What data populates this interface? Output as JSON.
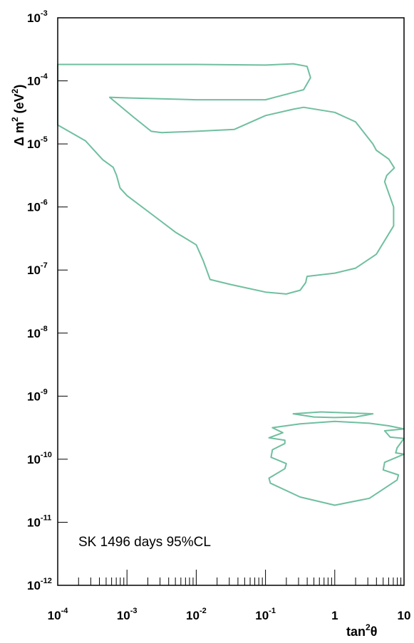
{
  "chart_data": {
    "type": "contour",
    "xlabel": {
      "base": "tan",
      "sup": "2",
      "tail": "θ"
    },
    "ylabel": {
      "pre": "Δ m",
      "sup1": "2",
      "mid": " (eV",
      "sup2": "2",
      "post": ")"
    },
    "x_log_range": [
      -4,
      1
    ],
    "y_log_range": [
      -12,
      -3
    ],
    "x_scale": "log",
    "y_scale": "log",
    "grid": false,
    "x_ticks": [
      {
        "base": "10",
        "exp": "-4"
      },
      {
        "base": "10",
        "exp": "-3"
      },
      {
        "base": "10",
        "exp": "-2"
      },
      {
        "base": "10",
        "exp": "-1"
      },
      {
        "base": "1",
        "exp": ""
      },
      {
        "base": "10",
        "exp": ""
      }
    ],
    "y_ticks": [
      {
        "base": "10",
        "exp": "-12"
      },
      {
        "base": "10",
        "exp": "-11"
      },
      {
        "base": "10",
        "exp": "-10"
      },
      {
        "base": "10",
        "exp": "-9"
      },
      {
        "base": "10",
        "exp": "-8"
      },
      {
        "base": "10",
        "exp": "-7"
      },
      {
        "base": "10",
        "exp": "-6"
      },
      {
        "base": "10",
        "exp": "-5"
      },
      {
        "base": "10",
        "exp": "-4"
      },
      {
        "base": "10",
        "exp": "-3"
      }
    ],
    "annotation": "SK 1496 days 95%CL",
    "color": "#6fbf9f",
    "contours": [
      {
        "name": "upper-allowed-region",
        "points": [
          [
            -4,
            -3.74
          ],
          [
            -3,
            -3.74
          ],
          [
            -2,
            -3.74
          ],
          [
            -1,
            -3.75
          ],
          [
            -0.6,
            -3.73
          ],
          [
            -0.4,
            -3.77
          ],
          [
            -0.35,
            -3.95
          ],
          [
            -0.45,
            -4.14
          ],
          [
            -1,
            -4.3
          ],
          [
            -2,
            -4.3
          ],
          [
            -3,
            -4.27
          ],
          [
            -3.25,
            -4.26
          ],
          [
            -2.9,
            -4.58
          ],
          [
            -2.65,
            -4.8
          ],
          [
            -2.5,
            -4.82
          ],
          [
            -2,
            -4.8
          ],
          [
            -1.45,
            -4.77
          ],
          [
            -1,
            -4.55
          ],
          [
            -0.6,
            -4.45
          ],
          [
            -0.45,
            -4.42
          ],
          [
            0,
            -4.5
          ],
          [
            0.3,
            -4.65
          ],
          [
            0.55,
            -5.0
          ],
          [
            0.6,
            -5.1
          ],
          [
            0.78,
            -5.24
          ],
          [
            0.86,
            -5.38
          ],
          [
            0.75,
            -5.5
          ],
          [
            0.72,
            -5.6
          ],
          [
            0.85,
            -6.0
          ],
          [
            0.85,
            -6.3
          ],
          [
            0.6,
            -6.75
          ],
          [
            0.3,
            -6.97
          ],
          [
            0,
            -7.05
          ],
          [
            -0.4,
            -7.1
          ],
          [
            -0.42,
            -7.2
          ],
          [
            -0.5,
            -7.32
          ],
          [
            -0.7,
            -7.38
          ],
          [
            -1,
            -7.35
          ],
          [
            -1.5,
            -7.23
          ],
          [
            -1.8,
            -7.15
          ],
          [
            -1.85,
            -7.0
          ],
          [
            -1.9,
            -6.85
          ],
          [
            -2,
            -6.6
          ],
          [
            -2.3,
            -6.4
          ],
          [
            -2.6,
            -6.15
          ],
          [
            -3,
            -5.82
          ],
          [
            -3.1,
            -5.7
          ],
          [
            -3.15,
            -5.5
          ],
          [
            -3.2,
            -5.37
          ],
          [
            -3.35,
            -5.25
          ],
          [
            -3.6,
            -4.95
          ],
          [
            -4,
            -4.7
          ]
        ]
      },
      {
        "name": "lower-island-top",
        "points": [
          [
            -0.6,
            -9.28
          ],
          [
            -0.2,
            -9.25
          ],
          [
            0.3,
            -9.27
          ],
          [
            0.55,
            -9.28
          ],
          [
            0.3,
            -9.33
          ],
          [
            0,
            -9.34
          ],
          [
            -0.3,
            -9.33
          ],
          [
            -0.6,
            -9.28
          ]
        ]
      },
      {
        "name": "lower-island-main",
        "points": [
          [
            0,
            -9.4
          ],
          [
            0.5,
            -9.43
          ],
          [
            0.78,
            -9.47
          ],
          [
            1,
            -9.52
          ],
          [
            0.72,
            -9.55
          ],
          [
            0.8,
            -9.65
          ],
          [
            1,
            -9.67
          ],
          [
            0.9,
            -9.82
          ],
          [
            0.88,
            -9.9
          ],
          [
            1,
            -9.92
          ],
          [
            0.72,
            -10.05
          ],
          [
            0.7,
            -10.17
          ],
          [
            0.92,
            -10.25
          ],
          [
            0.9,
            -10.33
          ],
          [
            0.5,
            -10.62
          ],
          [
            0,
            -10.73
          ],
          [
            -0.5,
            -10.6
          ],
          [
            -0.93,
            -10.38
          ],
          [
            -0.95,
            -10.3
          ],
          [
            -0.72,
            -10.15
          ],
          [
            -0.7,
            -10.07
          ],
          [
            -0.92,
            -9.97
          ],
          [
            -0.9,
            -9.85
          ],
          [
            -0.72,
            -9.75
          ],
          [
            -0.72,
            -9.7
          ],
          [
            -0.95,
            -9.66
          ],
          [
            -0.75,
            -9.58
          ],
          [
            -0.9,
            -9.5
          ],
          [
            -0.5,
            -9.44
          ],
          [
            0,
            -9.4
          ]
        ]
      }
    ]
  }
}
